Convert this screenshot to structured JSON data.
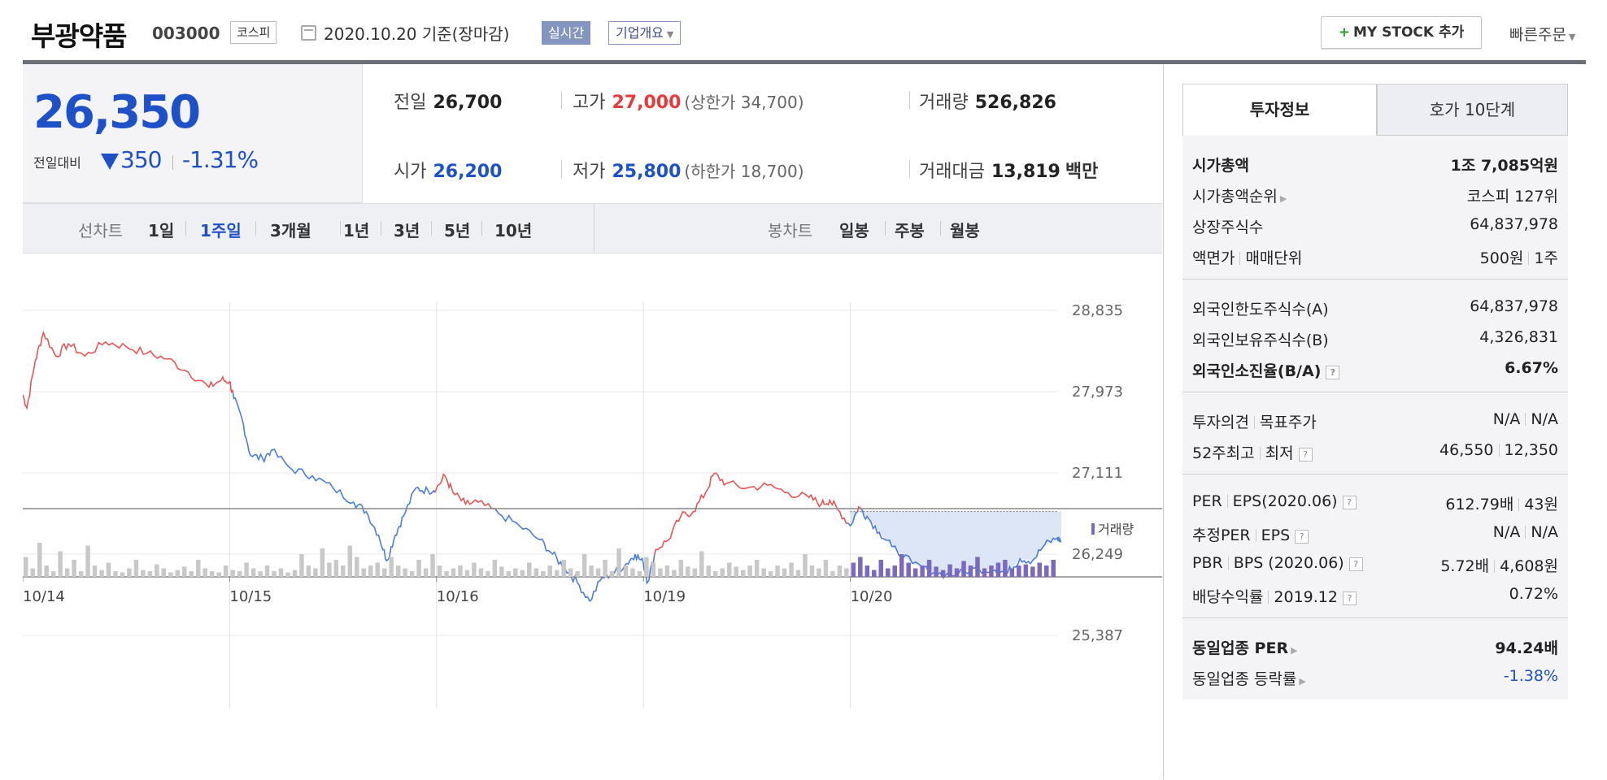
{
  "header": {
    "stock_name": "부광약품",
    "stock_code": "003000",
    "market": "코스피",
    "date_text": "2020.10.20 기준(장마감)",
    "realtime_label": "실시간",
    "company_info_label": "기업개요",
    "mystock_label": "MY STOCK 추가",
    "quick_order_label": "빠른주문"
  },
  "price": {
    "current": "26,350",
    "change_label": "전일대비",
    "change_value": "350",
    "change_pct": "-1.31%",
    "colors": {
      "up": "#e83a3a",
      "down": "#1e50c8"
    }
  },
  "quote": {
    "prev_close_label": "전일",
    "prev_close": "26,700",
    "high_label": "고가",
    "high": "27,000",
    "upper_limit": "(상한가 34,700)",
    "volume_label": "거래량",
    "volume": "526,826",
    "open_label": "시가",
    "open": "26,200",
    "low_label": "저가",
    "low": "25,800",
    "lower_limit": "(하한가 18,700)",
    "value_label": "거래대금",
    "value": "13,819",
    "value_unit": "백만"
  },
  "periods": {
    "line_label": "선차트",
    "line_items": [
      "1일",
      "1주일",
      "3개월",
      "1년",
      "3년",
      "5년",
      "10년"
    ],
    "line_active": "1주일",
    "candle_label": "봉차트",
    "candle_items": [
      "일봉",
      "주봉",
      "월봉"
    ]
  },
  "chart_data": {
    "type": "line",
    "y_ticks": [
      "28,835",
      "27,973",
      "27,111",
      "26,249",
      "25,387"
    ],
    "ylim": [
      25387,
      28835
    ],
    "x_labels": [
      "10/14",
      "10/15",
      "10/16",
      "10/19",
      "10/20"
    ],
    "reference_price": 26700,
    "volume_label": "거래량",
    "series": [
      {
        "points": [
          [
            0,
            27940
          ],
          [
            0.02,
            27800
          ],
          [
            0.06,
            28300
          ],
          [
            0.1,
            28600
          ],
          [
            0.16,
            28350
          ],
          [
            0.22,
            28480
          ],
          [
            0.3,
            28350
          ],
          [
            0.4,
            28500
          ],
          [
            0.5,
            28450
          ],
          [
            0.6,
            28380
          ],
          [
            0.7,
            28320
          ],
          [
            0.8,
            28180
          ],
          [
            0.9,
            28020
          ],
          [
            0.96,
            28100
          ],
          [
            1.0,
            28080
          ],
          [
            1.02,
            27900
          ],
          [
            1.06,
            27680
          ],
          [
            1.1,
            27300
          ],
          [
            1.16,
            27260
          ],
          [
            1.2,
            27350
          ],
          [
            1.3,
            27150
          ],
          [
            1.4,
            27080
          ],
          [
            1.5,
            26950
          ],
          [
            1.6,
            26800
          ],
          [
            1.66,
            26700
          ],
          [
            1.72,
            26450
          ],
          [
            1.76,
            26180
          ],
          [
            1.8,
            26450
          ],
          [
            1.84,
            26650
          ],
          [
            1.9,
            26950
          ],
          [
            1.96,
            26920
          ],
          [
            2.0,
            26950
          ],
          [
            2.04,
            27080
          ],
          [
            2.08,
            26900
          ],
          [
            2.14,
            26780
          ],
          [
            2.2,
            26800
          ],
          [
            2.3,
            26680
          ],
          [
            2.4,
            26550
          ],
          [
            2.5,
            26400
          ],
          [
            2.56,
            26250
          ],
          [
            2.62,
            26100
          ],
          [
            2.68,
            25950
          ],
          [
            2.74,
            25750
          ],
          [
            2.8,
            26000
          ],
          [
            2.86,
            26050
          ],
          [
            2.92,
            26150
          ],
          [
            2.96,
            26250
          ],
          [
            3.0,
            26150
          ],
          [
            3.02,
            25950
          ],
          [
            3.06,
            26300
          ],
          [
            3.12,
            26400
          ],
          [
            3.18,
            26650
          ],
          [
            3.24,
            26700
          ],
          [
            3.3,
            26900
          ],
          [
            3.34,
            27100
          ],
          [
            3.4,
            27000
          ],
          [
            3.5,
            26950
          ],
          [
            3.6,
            26980
          ],
          [
            3.7,
            26900
          ],
          [
            3.8,
            26850
          ],
          [
            3.86,
            26780
          ],
          [
            3.9,
            26820
          ],
          [
            3.94,
            26720
          ],
          [
            4.0,
            26550
          ],
          [
            4.04,
            26750
          ],
          [
            4.08,
            26650
          ],
          [
            4.14,
            26480
          ],
          [
            4.2,
            26330
          ],
          [
            4.3,
            26150
          ],
          [
            4.4,
            26050
          ],
          [
            4.5,
            26020
          ],
          [
            4.6,
            26100
          ],
          [
            4.7,
            26080
          ],
          [
            4.76,
            26050
          ],
          [
            4.82,
            26200
          ],
          [
            4.88,
            26180
          ],
          [
            4.94,
            26350
          ],
          [
            5.0,
            26420
          ],
          [
            5.02,
            26380
          ]
        ]
      }
    ],
    "volume": [
      0.35,
      0.15,
      0.6,
      0.2,
      0.1,
      0.45,
      0.15,
      0.3,
      0.1,
      0.55,
      0.2,
      0.12,
      0.25,
      0.1,
      0.08,
      0.15,
      0.3,
      0.12,
      0.1,
      0.22,
      0.15,
      0.08,
      0.12,
      0.18,
      0.1,
      0.3,
      0.15,
      0.1,
      0.08,
      0.2,
      0.12,
      0.1,
      0.25,
      0.15,
      0.1,
      0.2,
      0.1,
      0.15,
      0.08,
      0.12,
      0.4,
      0.2,
      0.15,
      0.5,
      0.25,
      0.3,
      0.2,
      0.55,
      0.35,
      0.15,
      0.2,
      0.25,
      0.15,
      0.35,
      0.2,
      0.15,
      0.1,
      0.3,
      0.15,
      0.4,
      0.2,
      0.1,
      0.15,
      0.2,
      0.12,
      0.25,
      0.15,
      0.1,
      0.3,
      0.18,
      0.1,
      0.15,
      0.12,
      0.25,
      0.15,
      0.1,
      0.2,
      0.12,
      0.3,
      0.15,
      0.1,
      0.4,
      0.2,
      0.15,
      0.3,
      0.1,
      0.5,
      0.2,
      0.15,
      0.1,
      0.35,
      0.25,
      0.15,
      0.2,
      0.12,
      0.3,
      0.18,
      0.15,
      0.45,
      0.2,
      0.1,
      0.15,
      0.25,
      0.18,
      0.12,
      0.2,
      0.3,
      0.15,
      0.1,
      0.2,
      0.15,
      0.25,
      0.12,
      0.4,
      0.2,
      0.15,
      0.3,
      0.1,
      0.2,
      0.15,
      0.25,
      0.35,
      0.2,
      0.12,
      0.3,
      0.15,
      0.2,
      0.4,
      0.25,
      0.15,
      0.2,
      0.3,
      0.18,
      0.12,
      0.22,
      0.15,
      0.28,
      0.2,
      0.35,
      0.15,
      0.2,
      0.25,
      0.3,
      0.15,
      0.2,
      0.22,
      0.18,
      0.25,
      0.2,
      0.3
    ],
    "colors": {
      "up": "#e85555",
      "down": "#4a7fd8",
      "fill": "#dce6f6",
      "volume": "#c8c8c8",
      "volume_today": "#7b68c0"
    }
  },
  "invest_info": {
    "tab_active": "투자정보",
    "tab_other": "호가 10단계",
    "groups": [
      [
        {
          "k": [
            "시가총액"
          ],
          "v": [
            "1조 7,085억원"
          ],
          "bold": true
        },
        {
          "k": [
            "시가총액순위"
          ],
          "v": [
            "코스피 127위"
          ],
          "arrow": true
        },
        {
          "k": [
            "상장주식수"
          ],
          "v": [
            "64,837,978"
          ]
        },
        {
          "k": [
            "액면가",
            "매매단위"
          ],
          "v": [
            "500원",
            "1주"
          ]
        }
      ],
      [
        {
          "k": [
            "외국인한도주식수(A)"
          ],
          "v": [
            "64,837,978"
          ]
        },
        {
          "k": [
            "외국인보유주식수(B)"
          ],
          "v": [
            "4,326,831"
          ]
        },
        {
          "k": [
            "외국인소진율(B/A)"
          ],
          "v": [
            "6.67%"
          ],
          "bold": true,
          "help": true
        }
      ],
      [
        {
          "k": [
            "투자의견",
            "목표주가"
          ],
          "v": [
            "N/A",
            "N/A"
          ]
        },
        {
          "k": [
            "52주최고",
            "최저"
          ],
          "v": [
            "46,550",
            "12,350"
          ],
          "help": true
        }
      ],
      [
        {
          "k": [
            "PER",
            "EPS(2020.06)"
          ],
          "v": [
            "612.79배",
            "43원"
          ],
          "help": true
        },
        {
          "k": [
            "추정PER",
            "EPS"
          ],
          "v": [
            "N/A",
            "N/A"
          ],
          "help": true
        },
        {
          "k": [
            "PBR",
            "BPS (2020.06)"
          ],
          "v": [
            "5.72배",
            "4,608원"
          ],
          "help": true
        },
        {
          "k": [
            "배당수익률",
            "2019.12"
          ],
          "v": [
            "0.72%"
          ],
          "help": true
        }
      ],
      [
        {
          "k": [
            "동일업종 PER"
          ],
          "v": [
            "94.24배"
          ],
          "bold": true,
          "arrow": true
        },
        {
          "k": [
            "동일업종 등락률"
          ],
          "v": [
            "-1.38%"
          ],
          "arrow": true,
          "blue": true
        }
      ]
    ]
  }
}
